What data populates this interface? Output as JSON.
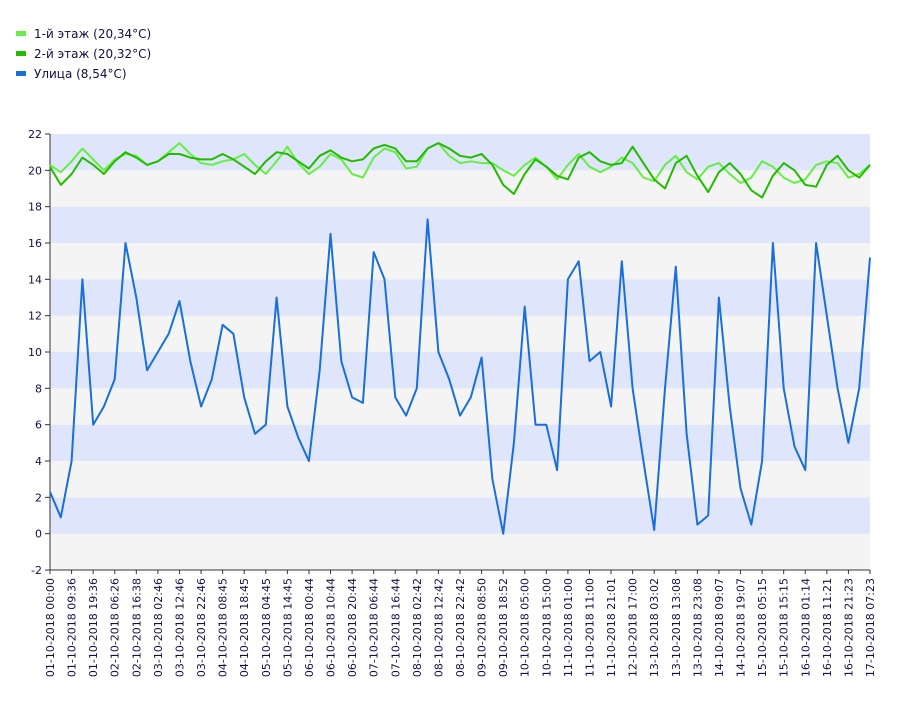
{
  "chart_data": {
    "type": "line",
    "categories": [
      "01-10-2018 00:00",
      null,
      "01-10-2018 09:36",
      null,
      "01-10-2018 19:36",
      null,
      "02-10-2018 06:26",
      null,
      "02-10-2018 16:38",
      null,
      "03-10-2018 02:46",
      null,
      "03-10-2018 12:46",
      null,
      "03-10-2018 22:46",
      null,
      "04-10-2018 08:45",
      null,
      "04-10-2018 18:45",
      null,
      "05-10-2018 04:45",
      null,
      "05-10-2018 14:45",
      null,
      "06-10-2018 00:44",
      null,
      "06-10-2018 10:44",
      null,
      "06-10-2018 20:44",
      null,
      "07-10-2018 06:44",
      null,
      "07-10-2018 16:44",
      null,
      "08-10-2018 02:42",
      null,
      "08-10-2018 12:42",
      null,
      "08-10-2018 22:42",
      null,
      "09-10-2018 08:50",
      null,
      "09-10-2018 18:52",
      null,
      "10-10-2018 05:00",
      null,
      "10-10-2018 15:00",
      null,
      "11-10-2018 01:00",
      null,
      "11-10-2018 11:00",
      null,
      "11-10-2018 21:01",
      null,
      "12-10-2018 17:00",
      null,
      "13-10-2018 03:02",
      null,
      "13-10-2018 13:08",
      null,
      "13-10-2018 23:08",
      null,
      "14-10-2018 09:07",
      null,
      "14-10-2018 19:07",
      null,
      "15-10-2018 05:15",
      null,
      "15-10-2018 15:15",
      null,
      "16-10-2018 01:14",
      null,
      "16-10-2018 11:21",
      null,
      "16-10-2018 21:23",
      null,
      "17-10-2018 07:23"
    ],
    "series": [
      {
        "name": "1-й этаж (20,34°C)",
        "color": "#66ee44",
        "values": [
          20.3,
          19.9,
          20.5,
          21.2,
          20.6,
          20.0,
          20.6,
          20.9,
          20.8,
          20.3,
          20.5,
          21.0,
          21.5,
          20.9,
          20.4,
          20.3,
          20.5,
          20.6,
          20.9,
          20.3,
          19.8,
          20.5,
          21.3,
          20.4,
          19.8,
          20.2,
          20.9,
          20.6,
          19.8,
          19.6,
          20.7,
          21.2,
          21.0,
          20.1,
          20.2,
          21.2,
          21.5,
          20.8,
          20.4,
          20.5,
          20.4,
          20.4,
          20.0,
          19.7,
          20.3,
          20.7,
          20.2,
          19.5,
          20.3,
          20.9,
          20.2,
          19.9,
          20.2,
          20.7,
          20.4,
          19.6,
          19.4,
          20.3,
          20.8,
          19.9,
          19.5,
          20.2,
          20.4,
          19.8,
          19.3,
          19.6,
          20.5,
          20.2,
          19.6,
          19.3,
          19.5,
          20.3,
          20.5,
          20.4,
          19.6,
          19.8,
          20.3
        ]
      },
      {
        "name": "2-й этаж (20,32°C)",
        "color": "#22bb00",
        "values": [
          20.2,
          19.2,
          19.8,
          20.7,
          20.3,
          19.8,
          20.5,
          21.0,
          20.7,
          20.3,
          20.5,
          20.9,
          20.9,
          20.7,
          20.6,
          20.6,
          20.9,
          20.6,
          20.2,
          19.8,
          20.5,
          21.0,
          20.9,
          20.5,
          20.1,
          20.8,
          21.1,
          20.7,
          20.5,
          20.6,
          21.2,
          21.4,
          21.2,
          20.5,
          20.5,
          21.2,
          21.5,
          21.2,
          20.8,
          20.7,
          20.9,
          20.3,
          19.2,
          18.7,
          19.8,
          20.6,
          20.2,
          19.7,
          19.5,
          20.7,
          21.0,
          20.5,
          20.3,
          20.4,
          21.3,
          20.4,
          19.5,
          19.0,
          20.4,
          20.8,
          19.7,
          18.8,
          19.9,
          20.4,
          19.8,
          18.9,
          18.5,
          19.7,
          20.4,
          20.0,
          19.2,
          19.1,
          20.3,
          20.8,
          20.0,
          19.6,
          20.3
        ]
      },
      {
        "name": "Улица (8,54°C)",
        "color": "#1a6fd8",
        "values": [
          2.3,
          0.9,
          4,
          14,
          6,
          7,
          8.5,
          16,
          13,
          9,
          10,
          11,
          12.8,
          9.5,
          7,
          8.5,
          11.5,
          11,
          7.5,
          5.5,
          6,
          13,
          7,
          5.3,
          4,
          9,
          16.5,
          9.5,
          7.5,
          7.2,
          15.5,
          14,
          7.5,
          6.5,
          8,
          17.3,
          10,
          8.5,
          6.5,
          7.5,
          9.7,
          3,
          0,
          5,
          12.5,
          6,
          6,
          3.5,
          14,
          15,
          9.5,
          10,
          7,
          15,
          8,
          4,
          0.2,
          8,
          14.7,
          5.5,
          0.5,
          1,
          13,
          7,
          2.5,
          0.5,
          4,
          16,
          8,
          4.8,
          3.5,
          16,
          12,
          8,
          5,
          8,
          15.2
        ]
      }
    ],
    "ylim": [
      -2,
      22
    ],
    "yticks": [
      -2,
      0,
      2,
      4,
      6,
      8,
      10,
      12,
      14,
      16,
      18,
      20,
      22
    ],
    "grid": true,
    "legend": "top-left"
  }
}
